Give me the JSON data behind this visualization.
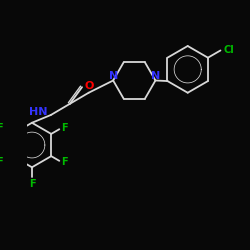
{
  "background": "#080808",
  "bond_color": "#d8d8d8",
  "nitrogen_color": "#3333ff",
  "oxygen_color": "#ff0000",
  "fluorine_color": "#00bb00",
  "chlorine_color": "#00bb00",
  "nh_color": "#3333ff",
  "figsize": [
    2.5,
    2.5
  ],
  "dpi": 100,
  "xlim": [
    0,
    10
  ],
  "ylim": [
    0,
    10
  ]
}
